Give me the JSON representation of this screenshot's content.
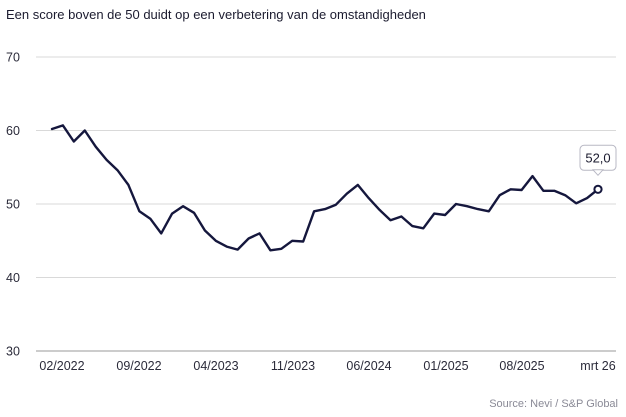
{
  "chart_data": {
    "type": "line",
    "subtitle": "Een score boven de 50 duidt op een verbetering van de omstandigheden",
    "source": "Source:  Nevi / S&P Global",
    "ylim": [
      30,
      70
    ],
    "yticks": [
      "70",
      "60",
      "50",
      "40",
      "30"
    ],
    "xticks": [
      "02/2022",
      "09/2022",
      "04/2023",
      "11/2023",
      "06/2024",
      "01/2025",
      "08/2025",
      "mrt 26"
    ],
    "grid": true,
    "last_value_label": "52,0",
    "series": [
      {
        "values": [
          60.2,
          60.7,
          58.5,
          60.0,
          57.8,
          56.0,
          54.6,
          52.6,
          49.0,
          48.0,
          46.0,
          48.7,
          49.7,
          48.8,
          46.4,
          45.0,
          44.2,
          43.8,
          45.3,
          46.0,
          43.7,
          43.9,
          45.0,
          44.9,
          49.0,
          49.3,
          49.9,
          51.4,
          52.6,
          50.8,
          49.2,
          47.8,
          48.3,
          47.0,
          46.7,
          48.7,
          48.5,
          50.0,
          49.7,
          49.3,
          49.0,
          51.2,
          52.0,
          51.9,
          53.8,
          51.8,
          51.8,
          51.2,
          50.1,
          50.8,
          52.0
        ]
      }
    ]
  }
}
